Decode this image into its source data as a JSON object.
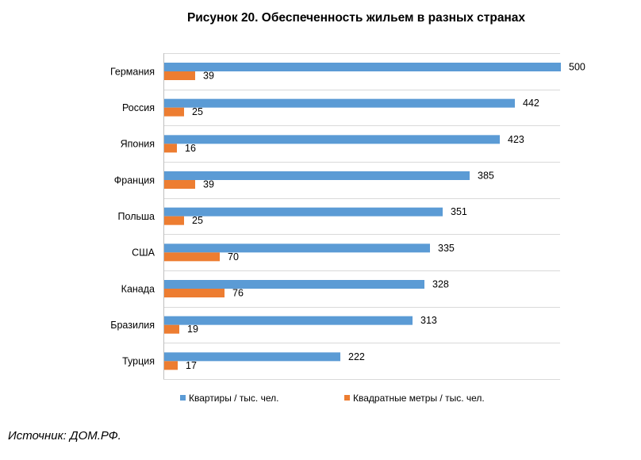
{
  "chart_data": {
    "type": "bar",
    "orientation": "horizontal",
    "title": "Рисунок 20. Обеспеченность жильем в разных странах",
    "categories": [
      "Германия",
      "Россия",
      "Япония",
      "Франция",
      "Польша",
      "США",
      "Канада",
      "Бразилия",
      "Турция"
    ],
    "series": [
      {
        "name": "Квартиры / тыс. чел.",
        "color": "#5B9BD5",
        "values": [
          500,
          442,
          423,
          385,
          351,
          335,
          328,
          313,
          222
        ]
      },
      {
        "name": "Квадратные метры / тыс. чел.",
        "color": "#ED7D31",
        "values": [
          39,
          25,
          16,
          39,
          25,
          70,
          76,
          19,
          17
        ]
      }
    ],
    "xlim": [
      0,
      500
    ],
    "xlabel": "",
    "ylabel": "",
    "grid": "horizontal separators between categories",
    "legend": "bottom"
  },
  "source": "Источник: ДОМ.РФ."
}
